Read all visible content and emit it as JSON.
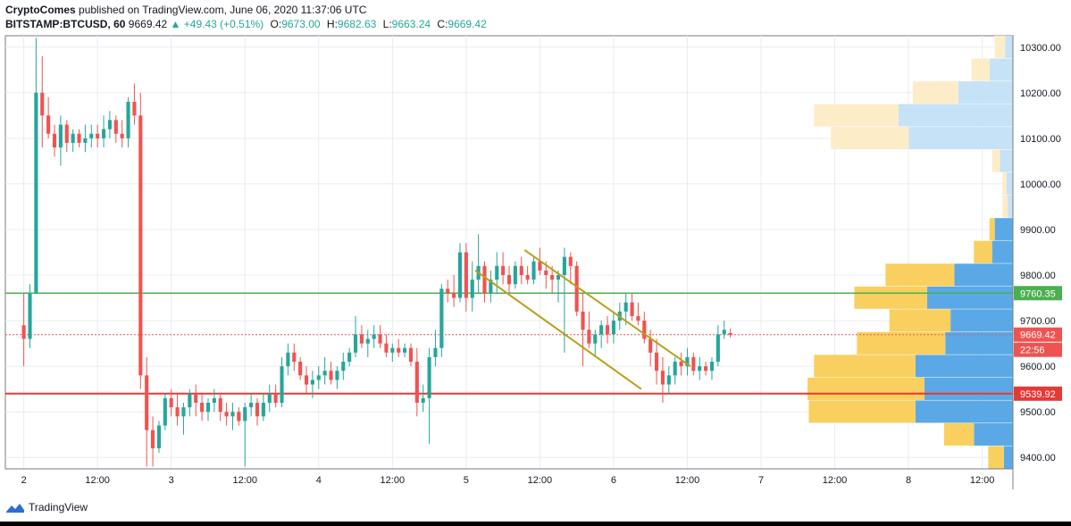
{
  "header": {
    "publisher": "CryptoComes",
    "published_text": "published on TradingView.com, June 06, 2020 11:37:06 UTC",
    "symbol": "BITSTAMP:BTCUSD, 60",
    "last": "9669.42",
    "change": "+49.43 (+0.51%)",
    "o_label": "O:",
    "o_value": "9673.00",
    "h_label": "H:",
    "h_value": "9682.63",
    "l_label": "L:",
    "l_value": "9663.24",
    "c_label": "C:",
    "c_value": "9669.42"
  },
  "footer": {
    "brand": "TradingView"
  },
  "colors": {
    "up": "#26a69a",
    "down": "#ef5350",
    "support": "#e53935",
    "resistance": "#4caf50",
    "channel": "#b8a016",
    "vp_up_strong": "#5aa9e6",
    "vp_down_strong": "#f9cf5f",
    "vp_up_light": "#c6e2f6",
    "vp_down_light": "#fdecc8"
  },
  "chart_data": {
    "type": "candlestick",
    "symbol": "BITSTAMP:BTCUSD",
    "interval": "60",
    "ylim": [
      9375,
      10325
    ],
    "y_ticks": [
      9400,
      9500,
      9600,
      9700,
      9800,
      9900,
      10000,
      10100,
      10200,
      10300
    ],
    "y_tick_labels": [
      "9400.00",
      "9500.00",
      "9600.00",
      "9700.00",
      "9800.00",
      "9900.00",
      "10000.00",
      "10100.00",
      "10200.00",
      "10300.00"
    ],
    "x_ticks": [
      {
        "label": "2",
        "hour": 0
      },
      {
        "label": "12:00",
        "hour": 12
      },
      {
        "label": "3",
        "hour": 24
      },
      {
        "label": "12:00",
        "hour": 36
      },
      {
        "label": "4",
        "hour": 48
      },
      {
        "label": "12:00",
        "hour": 60
      },
      {
        "label": "5",
        "hour": 72
      },
      {
        "label": "12:00",
        "hour": 84
      },
      {
        "label": "6",
        "hour": 96
      },
      {
        "label": "12:00",
        "hour": 108
      },
      {
        "label": "7",
        "hour": 120
      },
      {
        "label": "12:00",
        "hour": 132
      },
      {
        "label": "8",
        "hour": 144
      },
      {
        "label": "12:00",
        "hour": 156
      }
    ],
    "x_range_hours": [
      -3,
      161
    ],
    "ohlc": [
      [
        9690,
        9760,
        9600,
        9660
      ],
      [
        9660,
        9780,
        9640,
        9760
      ],
      [
        9760,
        10320,
        9760,
        10200
      ],
      [
        10200,
        10280,
        10080,
        10150
      ],
      [
        10150,
        10190,
        10100,
        10110
      ],
      [
        10110,
        10130,
        10060,
        10080
      ],
      [
        10080,
        10150,
        10040,
        10130
      ],
      [
        10130,
        10140,
        10070,
        10090
      ],
      [
        10090,
        10120,
        10070,
        10110
      ],
      [
        10110,
        10120,
        10080,
        10090
      ],
      [
        10090,
        10130,
        10070,
        10100
      ],
      [
        10100,
        10130,
        10080,
        10110
      ],
      [
        10110,
        10130,
        10080,
        10100
      ],
      [
        10100,
        10150,
        10080,
        10120
      ],
      [
        10120,
        10160,
        10100,
        10140
      ],
      [
        10140,
        10150,
        10090,
        10110
      ],
      [
        10110,
        10140,
        10080,
        10100
      ],
      [
        10100,
        10190,
        10080,
        10180
      ],
      [
        10180,
        10220,
        10130,
        10150
      ],
      [
        10150,
        10200,
        9550,
        9580
      ],
      [
        9580,
        9620,
        9380,
        9460
      ],
      [
        9460,
        9490,
        9380,
        9420
      ],
      [
        9420,
        9480,
        9410,
        9470
      ],
      [
        9470,
        9540,
        9460,
        9530
      ],
      [
        9530,
        9550,
        9490,
        9510
      ],
      [
        9510,
        9540,
        9470,
        9490
      ],
      [
        9490,
        9520,
        9450,
        9510
      ],
      [
        9510,
        9550,
        9490,
        9540
      ],
      [
        9540,
        9560,
        9490,
        9520
      ],
      [
        9520,
        9540,
        9480,
        9500
      ],
      [
        9500,
        9530,
        9480,
        9520
      ],
      [
        9520,
        9550,
        9500,
        9530
      ],
      [
        9530,
        9540,
        9480,
        9500
      ],
      [
        9500,
        9520,
        9470,
        9490
      ],
      [
        9490,
        9520,
        9460,
        9500
      ],
      [
        9500,
        9510,
        9470,
        9480
      ],
      [
        9480,
        9520,
        9380,
        9510
      ],
      [
        9510,
        9540,
        9490,
        9520
      ],
      [
        9520,
        9530,
        9470,
        9490
      ],
      [
        9490,
        9540,
        9480,
        9520
      ],
      [
        9520,
        9560,
        9500,
        9540
      ],
      [
        9540,
        9560,
        9510,
        9520
      ],
      [
        9520,
        9620,
        9510,
        9600
      ],
      [
        9600,
        9650,
        9580,
        9630
      ],
      [
        9630,
        9650,
        9590,
        9610
      ],
      [
        9610,
        9620,
        9570,
        9580
      ],
      [
        9580,
        9600,
        9540,
        9560
      ],
      [
        9560,
        9590,
        9530,
        9570
      ],
      [
        9570,
        9600,
        9550,
        9580
      ],
      [
        9580,
        9620,
        9560,
        9590
      ],
      [
        9590,
        9610,
        9560,
        9570
      ],
      [
        9570,
        9600,
        9550,
        9590
      ],
      [
        9590,
        9630,
        9570,
        9610
      ],
      [
        9610,
        9640,
        9600,
        9630
      ],
      [
        9630,
        9710,
        9620,
        9670
      ],
      [
        9670,
        9690,
        9640,
        9650
      ],
      [
        9650,
        9680,
        9620,
        9660
      ],
      [
        9660,
        9690,
        9640,
        9670
      ],
      [
        9670,
        9690,
        9640,
        9650
      ],
      [
        9650,
        9670,
        9620,
        9630
      ],
      [
        9630,
        9650,
        9610,
        9640
      ],
      [
        9640,
        9660,
        9620,
        9630
      ],
      [
        9630,
        9650,
        9620,
        9640
      ],
      [
        9640,
        9650,
        9600,
        9610
      ],
      [
        9610,
        9640,
        9490,
        9520
      ],
      [
        9520,
        9560,
        9500,
        9530
      ],
      [
        9530,
        9640,
        9430,
        9620
      ],
      [
        9620,
        9680,
        9600,
        9640
      ],
      [
        9640,
        9780,
        9620,
        9770
      ],
      [
        9770,
        9790,
        9740,
        9760
      ],
      [
        9760,
        9800,
        9730,
        9750
      ],
      [
        9750,
        9870,
        9740,
        9850
      ],
      [
        9850,
        9870,
        9720,
        9750
      ],
      [
        9750,
        9830,
        9720,
        9790
      ],
      [
        9790,
        9890,
        9760,
        9820
      ],
      [
        9820,
        9830,
        9740,
        9760
      ],
      [
        9760,
        9810,
        9740,
        9790
      ],
      [
        9790,
        9850,
        9760,
        9820
      ],
      [
        9820,
        9850,
        9780,
        9800
      ],
      [
        9800,
        9820,
        9760,
        9780
      ],
      [
        9780,
        9830,
        9770,
        9820
      ],
      [
        9820,
        9840,
        9780,
        9800
      ],
      [
        9800,
        9820,
        9780,
        9790
      ],
      [
        9790,
        9840,
        9780,
        9830
      ],
      [
        9830,
        9860,
        9800,
        9810
      ],
      [
        9810,
        9830,
        9770,
        9800
      ],
      [
        9800,
        9820,
        9760,
        9790
      ],
      [
        9790,
        9810,
        9740,
        9800
      ],
      [
        9800,
        9860,
        9630,
        9840
      ],
      [
        9840,
        9850,
        9780,
        9820
      ],
      [
        9820,
        9830,
        9710,
        9720
      ],
      [
        9720,
        9760,
        9600,
        9680
      ],
      [
        9680,
        9720,
        9640,
        9650
      ],
      [
        9650,
        9680,
        9620,
        9670
      ],
      [
        9670,
        9700,
        9640,
        9690
      ],
      [
        9690,
        9710,
        9650,
        9670
      ],
      [
        9670,
        9720,
        9650,
        9700
      ],
      [
        9700,
        9740,
        9680,
        9720
      ],
      [
        9720,
        9760,
        9690,
        9740
      ],
      [
        9740,
        9760,
        9700,
        9710
      ],
      [
        9710,
        9740,
        9690,
        9700
      ],
      [
        9700,
        9720,
        9650,
        9660
      ],
      [
        9660,
        9680,
        9600,
        9630
      ],
      [
        9630,
        9660,
        9560,
        9590
      ],
      [
        9590,
        9620,
        9520,
        9560
      ],
      [
        9560,
        9600,
        9540,
        9580
      ],
      [
        9580,
        9620,
        9560,
        9610
      ],
      [
        9610,
        9630,
        9580,
        9600
      ],
      [
        9600,
        9640,
        9580,
        9620
      ],
      [
        9620,
        9630,
        9580,
        9590
      ],
      [
        9590,
        9620,
        9570,
        9600
      ],
      [
        9600,
        9610,
        9580,
        9590
      ],
      [
        9590,
        9620,
        9570,
        9610
      ],
      [
        9610,
        9690,
        9600,
        9670
      ],
      [
        9670,
        9700,
        9660,
        9680
      ],
      [
        9673,
        9683,
        9663,
        9669
      ]
    ],
    "lines": [
      {
        "label": "9760.35",
        "price": 9760.35,
        "kind": "resistance"
      },
      {
        "label": "9539.92",
        "price": 9539.92,
        "kind": "support"
      }
    ],
    "last_price": {
      "label": "9669.42",
      "price": 9669.42,
      "countdown": "22:56"
    },
    "channel": {
      "upper": [
        [
          81.5,
          9855
        ],
        [
          108.5,
          9600
        ]
      ],
      "lower": [
        [
          73.5,
          9810
        ],
        [
          100.5,
          9550
        ]
      ]
    },
    "volume_profile": [
      {
        "price": 10300,
        "up": 6,
        "down": 8
      },
      {
        "price": 10250,
        "up": 18,
        "down": 14
      },
      {
        "price": 10200,
        "up": 42,
        "down": 35
      },
      {
        "price": 10150,
        "up": 88,
        "down": 65
      },
      {
        "price": 10100,
        "up": 80,
        "down": 60
      },
      {
        "price": 10050,
        "up": 10,
        "down": 6
      },
      {
        "price": 10000,
        "up": 5,
        "down": 3
      },
      {
        "price": 9950,
        "up": 4,
        "down": 4
      },
      {
        "price": 9900,
        "up": 14,
        "down": 4
      },
      {
        "price": 9850,
        "up": 16,
        "down": 14
      },
      {
        "price": 9800,
        "up": 45,
        "down": 53
      },
      {
        "price": 9750,
        "up": 66,
        "down": 56
      },
      {
        "price": 9700,
        "up": 48,
        "down": 47
      },
      {
        "price": 9650,
        "up": 52,
        "down": 68
      },
      {
        "price": 9600,
        "up": 75,
        "down": 78
      },
      {
        "price": 9550,
        "up": 68,
        "down": 90
      },
      {
        "price": 9500,
        "up": 75,
        "down": 82
      },
      {
        "price": 9450,
        "up": 30,
        "down": 23
      },
      {
        "price": 9400,
        "up": 7,
        "down": 12
      }
    ],
    "vp_strong_range": [
      9380,
      9925
    ]
  }
}
